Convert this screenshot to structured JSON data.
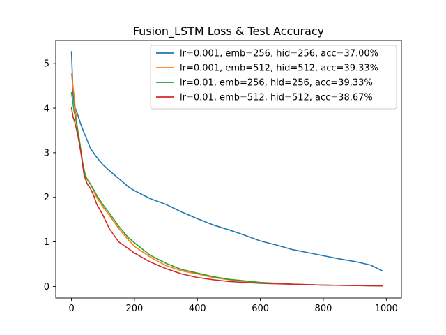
{
  "chart_data": {
    "type": "line",
    "title": "Fusion_LSTM Loss & Test Accuracy",
    "xlabel": "",
    "ylabel": "",
    "xlim": [
      -50,
      1048
    ],
    "ylim": [
      -0.26,
      5.52
    ],
    "xticks": [
      0,
      200,
      400,
      600,
      800,
      1000
    ],
    "yticks": [
      0,
      1,
      2,
      3,
      4,
      5
    ],
    "grid": false,
    "legend_position": "top-right",
    "series": [
      {
        "name": "lr=0.001, emb=256, hid=256, acc=37.00%",
        "color": "#1f77b4",
        "x": [
          0,
          5,
          10,
          20,
          30,
          40,
          50,
          60,
          70,
          80,
          100,
          120,
          150,
          180,
          200,
          250,
          300,
          350,
          400,
          450,
          500,
          550,
          600,
          650,
          700,
          750,
          800,
          850,
          900,
          950,
          990
        ],
        "y": [
          5.28,
          4.3,
          4.05,
          3.85,
          3.63,
          3.45,
          3.28,
          3.1,
          3.0,
          2.9,
          2.73,
          2.6,
          2.42,
          2.24,
          2.15,
          1.97,
          1.84,
          1.67,
          1.52,
          1.38,
          1.27,
          1.15,
          1.02,
          0.93,
          0.83,
          0.76,
          0.69,
          0.62,
          0.56,
          0.48,
          0.34
        ]
      },
      {
        "name": "lr=0.001, emb=512, hid=512, acc=39.33%",
        "color": "#ff7f0e",
        "x": [
          0,
          3,
          8,
          12,
          20,
          30,
          40,
          50,
          60,
          80,
          100,
          120,
          150,
          180,
          200,
          250,
          300,
          350,
          400,
          450,
          500,
          600,
          700,
          800,
          900,
          990
        ],
        "y": [
          4.78,
          4.6,
          4.3,
          4.0,
          3.5,
          3.0,
          2.6,
          2.4,
          2.3,
          2.0,
          1.78,
          1.6,
          1.3,
          1.05,
          0.9,
          0.66,
          0.47,
          0.35,
          0.28,
          0.2,
          0.15,
          0.08,
          0.05,
          0.03,
          0.02,
          0.01
        ]
      },
      {
        "name": "lr=0.01, emb=256, hid=256, acc=39.33%",
        "color": "#2ca02c",
        "x": [
          0,
          3,
          8,
          15,
          25,
          35,
          45,
          60,
          80,
          100,
          120,
          150,
          180,
          200,
          250,
          300,
          350,
          400,
          450,
          500,
          600,
          700,
          800,
          900,
          990
        ],
        "y": [
          4.36,
          4.2,
          3.95,
          3.7,
          3.3,
          2.8,
          2.45,
          2.3,
          2.05,
          1.83,
          1.65,
          1.35,
          1.1,
          0.98,
          0.7,
          0.52,
          0.38,
          0.3,
          0.22,
          0.16,
          0.09,
          0.05,
          0.03,
          0.02,
          0.01
        ]
      },
      {
        "name": "lr=0.01, emb=512, hid=512, acc=38.67%",
        "color": "#d62728",
        "x": [
          0,
          5,
          10,
          20,
          30,
          40,
          50,
          60,
          70,
          80,
          100,
          120,
          150,
          180,
          200,
          250,
          300,
          350,
          400,
          450,
          500,
          600,
          700,
          800,
          900,
          990
        ],
        "y": [
          4.02,
          3.8,
          3.7,
          3.4,
          3.0,
          2.5,
          2.3,
          2.2,
          2.05,
          1.85,
          1.6,
          1.3,
          1.0,
          0.85,
          0.75,
          0.55,
          0.4,
          0.28,
          0.2,
          0.15,
          0.11,
          0.07,
          0.05,
          0.03,
          0.02,
          0.01
        ]
      }
    ]
  }
}
